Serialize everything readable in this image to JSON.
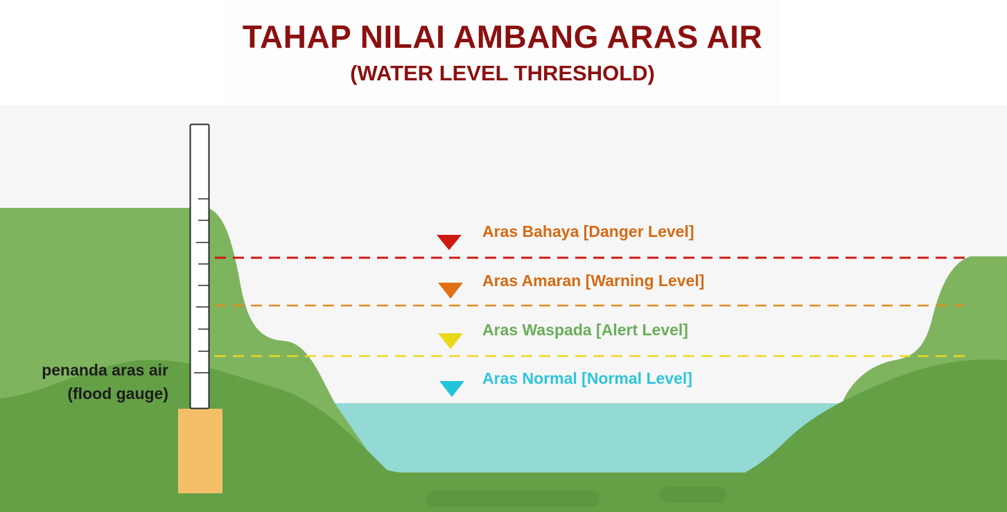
{
  "header": {
    "title": "TAHAP NILAI AMBANG ARAS AIR",
    "subtitle": "(WATER LEVEL THRESHOLD)"
  },
  "levels": [
    {
      "label": "Aras Bahaya [Danger Level]",
      "marker_color": "#cc1a12",
      "text_color": "#d46a14",
      "line_color": "#cc1a12"
    },
    {
      "label": "Aras Amaran [Warning Level]",
      "marker_color": "#e07016",
      "text_color": "#d46a14",
      "line_color": "#e08a1c"
    },
    {
      "label": "Aras Waspada [Alert Level]",
      "marker_color": "#e8d81a",
      "text_color": "#6aad5a",
      "line_color": "#ecd820"
    },
    {
      "label": "Aras Normal [Normal Level]",
      "marker_color": "#22c4dc",
      "text_color": "#2ec4dc",
      "line_color": null
    }
  ],
  "gauge": {
    "label_line1": "penanda aras air",
    "label_line2": "(flood gauge)"
  },
  "colors": {
    "sky": "#f6f6f6",
    "hill_light": "#7fb45e",
    "hill_dark": "#64a046",
    "water": "#93dad4",
    "gauge_base": "#f5bf6a"
  }
}
